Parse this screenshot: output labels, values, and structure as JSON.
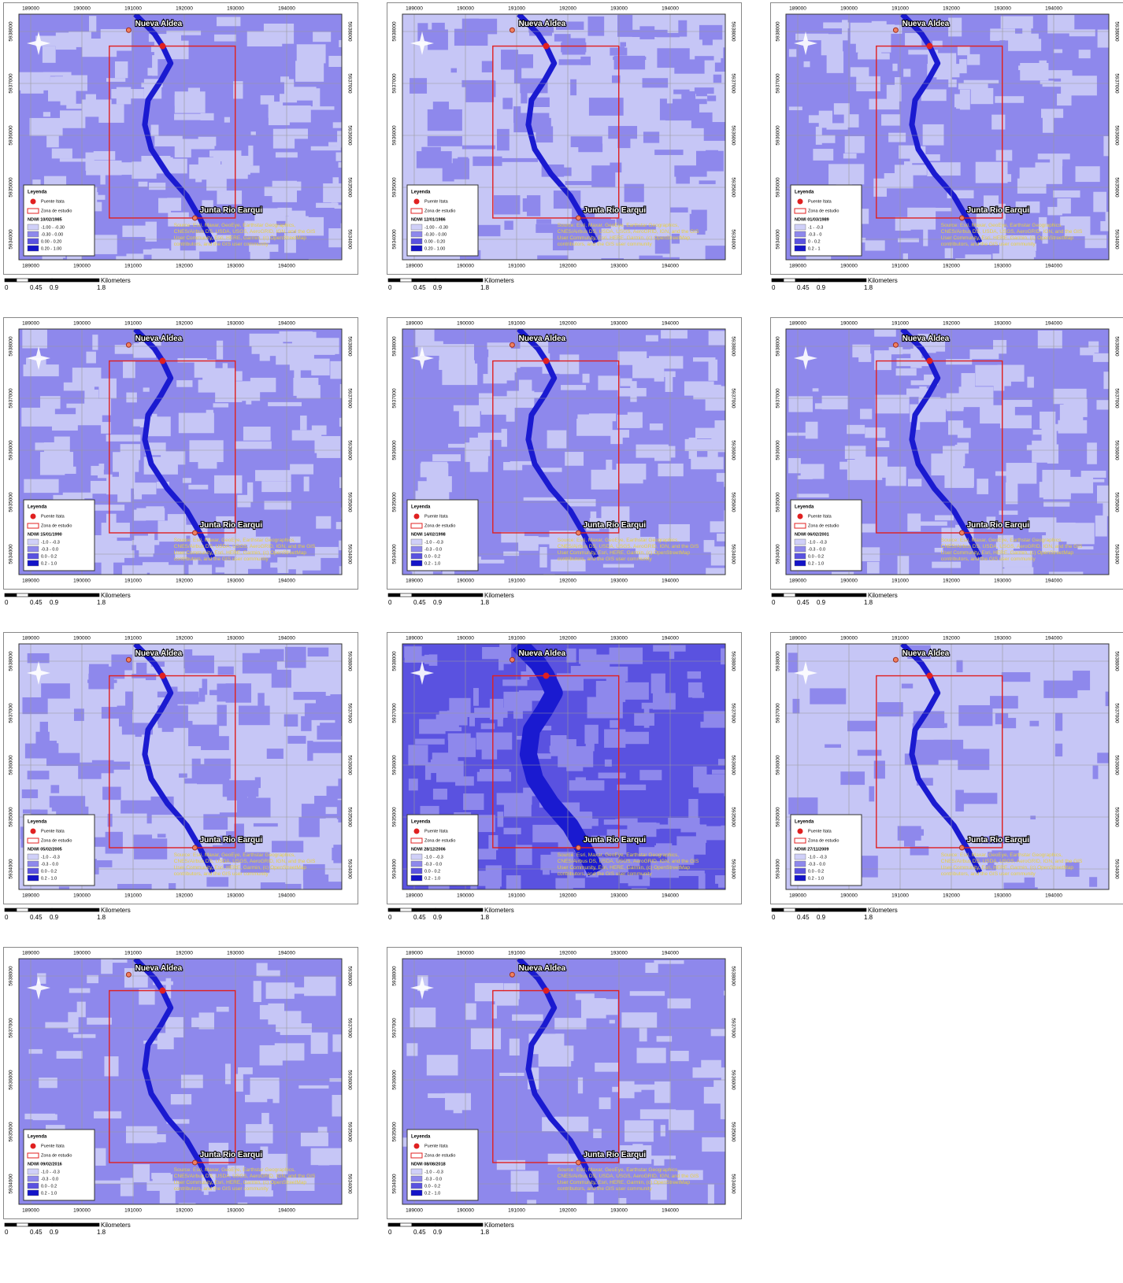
{
  "x_ticks": [
    "189000",
    "190000",
    "191000",
    "192000",
    "193000",
    "194000"
  ],
  "y_ticks": [
    "5938000",
    "5937000",
    "5936000",
    "5935000",
    "5934000"
  ],
  "places": [
    "Nueva Aldea",
    "Junta Rio Earqui"
  ],
  "legend": {
    "title": "Leyenda",
    "point": "Puente Itata",
    "box": "Zona de estudio"
  },
  "scale": {
    "labels": [
      "0",
      "0.45",
      "0.9",
      "1.8"
    ],
    "unit": "Kilometers"
  },
  "attribution": [
    "Source: Esri, Maxar, GeoEye, Earthstar Geographics,",
    "CNES/Airbus DS, USDA, USGS, AeroGRID, IGN, and the GIS",
    "User Community, Esri, HERE, Garmin, (c) OpenStreetMap",
    "contributors, and the GIS user community"
  ],
  "panels": [
    {
      "title": "NDWI 10/02/1985",
      "classes": [
        "-1.00 - -0.30",
        "-0.30 - 0.00",
        "0.00 - 0.20",
        "0.20 - 1.00"
      ]
    },
    {
      "title": "NDWI 12/01/1986",
      "classes": [
        "-1.00 - -0.30",
        "-0.30 - 0.00",
        "0.00 - 0.20",
        "0.20 - 1.00"
      ]
    },
    {
      "title": "NDWI 01/03/1989",
      "classes": [
        "-1 - -0.3",
        "-0.3 - 0",
        "0 - 0.2",
        "0.2 - 1"
      ]
    },
    {
      "title": "NDWI 15/01/1990",
      "classes": [
        "-1.0 - -0.3",
        "-0.3 - 0.0",
        "0.0 - 0.2",
        "0.2 - 1.0"
      ]
    },
    {
      "title": "NDWI 14/02/1998",
      "classes": [
        "-1.0 - -0.3",
        "-0.3 - 0.0",
        "0.0 - 0.2",
        "0.2 - 1.0"
      ]
    },
    {
      "title": "NDWI 06/02/2001",
      "classes": [
        "-1.0 - -0.3",
        "-0.3 - 0.0",
        "0.0 - 0.2",
        "0.2 - 1.0"
      ]
    },
    {
      "title": "NDWI 05/02/2005",
      "classes": [
        "-1.0 - -0.3",
        "-0.3 - 0.0",
        "0.0 - 0.2",
        "0.2 - 1.0"
      ]
    },
    {
      "title": "NDWI 28/12/2006",
      "classes": [
        "-1.0 - -0.3",
        "-0.3 - 0.0",
        "0.0 - 0.2",
        "0.2 - 1.0"
      ]
    },
    {
      "title": "NDWI 27/11/2009",
      "classes": [
        "-1.0 - -0.3",
        "-0.3 - 0.0",
        "0.0 - 0.2",
        "0.2 - 1.0"
      ]
    },
    {
      "title": "NDWI 09/02/2016",
      "classes": [
        "-1.0 - -0.3",
        "-0.3 - 0.0",
        "0.0 - 0.2",
        "0.2 - 1.0"
      ]
    },
    {
      "title": "NDWI 08/08/2018",
      "classes": [
        "-1.0 - -0.3",
        "-0.3 - 0.0",
        "0.0 - 0.2",
        "0.2 - 1.0"
      ]
    }
  ]
}
